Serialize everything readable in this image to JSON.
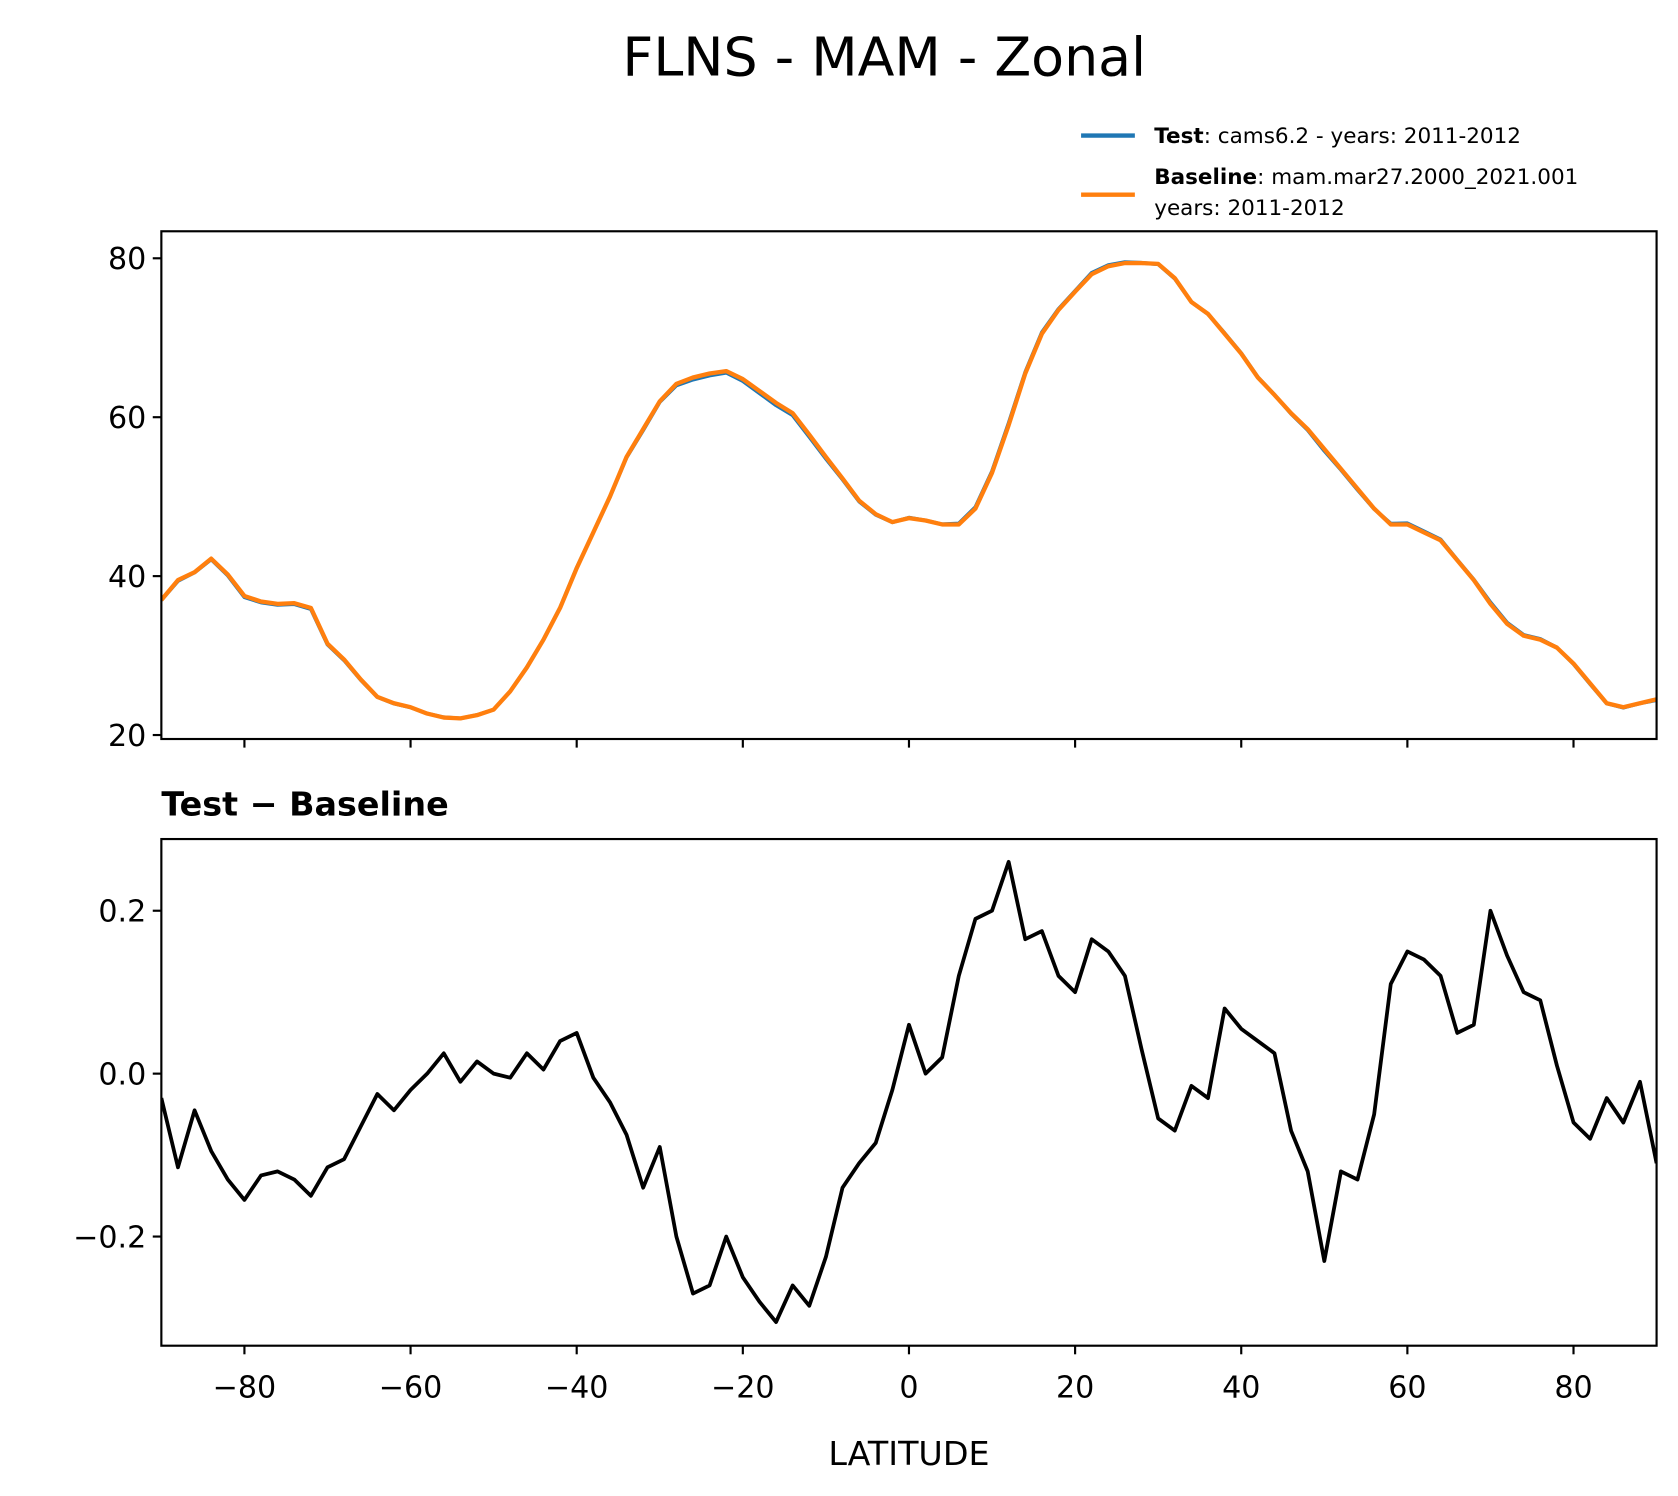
{
  "chart_data": [
    {
      "type": "line",
      "title": "FLNS - MAM - Zonal",
      "x": [
        -90,
        -88,
        -86,
        -84,
        -82,
        -80,
        -78,
        -76,
        -74,
        -72,
        -70,
        -68,
        -66,
        -64,
        -62,
        -60,
        -58,
        -56,
        -54,
        -52,
        -50,
        -48,
        -46,
        -44,
        -42,
        -40,
        -38,
        -36,
        -34,
        -32,
        -30,
        -28,
        -26,
        -24,
        -22,
        -20,
        -18,
        -16,
        -14,
        -12,
        -10,
        -8,
        -6,
        -4,
        -2,
        0,
        2,
        4,
        6,
        8,
        10,
        12,
        14,
        16,
        18,
        20,
        22,
        24,
        26,
        28,
        30,
        32,
        34,
        36,
        38,
        40,
        42,
        44,
        46,
        48,
        50,
        52,
        54,
        56,
        58,
        60,
        62,
        64,
        66,
        68,
        70,
        72,
        74,
        76,
        78,
        80,
        82,
        84,
        86,
        88,
        90
      ],
      "series": [
        {
          "name": "Test",
          "legend_text": [
            ": cams6.2 - years: 2011-2012"
          ],
          "color": "#1f77b4",
          "values": [
            36.97,
            39.39,
            40.46,
            42.11,
            40.07,
            37.35,
            36.68,
            36.38,
            36.47,
            35.85,
            31.39,
            29.4,
            26.94,
            24.78,
            23.96,
            23.48,
            22.7,
            22.23,
            22.09,
            22.52,
            23.2,
            25.5,
            28.53,
            32.01,
            36.04,
            41.05,
            45.5,
            49.97,
            54.93,
            58.36,
            61.91,
            64.0,
            64.73,
            65.24,
            65.6,
            64.55,
            63.02,
            61.5,
            60.24,
            57.52,
            54.78,
            52.16,
            49.39,
            47.72,
            46.78,
            47.36,
            47.0,
            46.52,
            46.62,
            48.69,
            53.2,
            59.26,
            65.67,
            70.68,
            73.62,
            75.9,
            78.17,
            79.15,
            79.52,
            79.43,
            79.25,
            77.43,
            74.49,
            72.97,
            70.58,
            68.06,
            65.04,
            62.83,
            60.43,
            58.38,
            55.77,
            53.38,
            50.87,
            48.45,
            46.61,
            46.65,
            45.64,
            44.62,
            42.05,
            39.56,
            36.7,
            34.15,
            32.6,
            32.09,
            31.01,
            28.94,
            26.42,
            23.97,
            23.44,
            23.99,
            24.39
          ]
        },
        {
          "name": "Baseline",
          "legend_text": [
            ": mam.mar27.2000_2021.001",
            "years: 2011-2012"
          ],
          "color": "#ff7f0e",
          "values": [
            37.0,
            39.5,
            40.5,
            42.2,
            40.2,
            37.5,
            36.8,
            36.5,
            36.6,
            36.0,
            31.5,
            29.5,
            27.0,
            24.8,
            24.0,
            23.5,
            22.7,
            22.2,
            22.1,
            22.5,
            23.2,
            25.5,
            28.5,
            32.0,
            36.0,
            41.0,
            45.5,
            50.0,
            55.0,
            58.5,
            62.0,
            64.2,
            65.0,
            65.5,
            65.8,
            64.8,
            63.3,
            61.8,
            60.5,
            57.8,
            55.0,
            52.3,
            49.5,
            47.8,
            46.8,
            47.3,
            47.0,
            46.5,
            46.5,
            48.5,
            53.0,
            59.0,
            65.5,
            70.5,
            73.5,
            75.8,
            78.0,
            79.0,
            79.4,
            79.4,
            79.3,
            77.5,
            74.5,
            73.0,
            70.5,
            68.0,
            65.0,
            62.8,
            60.5,
            58.5,
            56.0,
            53.5,
            51.0,
            48.5,
            46.5,
            46.5,
            45.5,
            44.5,
            42.0,
            39.5,
            36.5,
            34.0,
            32.5,
            32.0,
            31.0,
            29.0,
            26.5,
            24.0,
            23.5,
            24.0,
            24.5
          ]
        }
      ],
      "xlim": [
        -90,
        90
      ],
      "xticks": [
        -80,
        -60,
        -40,
        -20,
        0,
        20,
        40,
        60,
        80
      ],
      "ylim": [
        19.5,
        83.4
      ],
      "yticks": [
        20,
        40,
        60,
        80
      ]
    },
    {
      "type": "line",
      "title": "Test − Baseline",
      "xlabel": "LATITUDE",
      "color": "#000000",
      "x": [
        -90,
        -88,
        -86,
        -84,
        -82,
        -80,
        -78,
        -76,
        -74,
        -72,
        -70,
        -68,
        -66,
        -64,
        -62,
        -60,
        -58,
        -56,
        -54,
        -52,
        -50,
        -48,
        -46,
        -44,
        -42,
        -40,
        -38,
        -36,
        -34,
        -32,
        -30,
        -28,
        -26,
        -24,
        -22,
        -20,
        -18,
        -16,
        -14,
        -12,
        -10,
        -8,
        -6,
        -4,
        -2,
        0,
        2,
        4,
        6,
        8,
        10,
        12,
        14,
        16,
        18,
        20,
        22,
        24,
        26,
        28,
        30,
        32,
        34,
        36,
        38,
        40,
        42,
        44,
        46,
        48,
        50,
        52,
        54,
        56,
        58,
        60,
        62,
        64,
        66,
        68,
        70,
        72,
        74,
        76,
        78,
        80,
        82,
        84,
        86,
        88,
        90
      ],
      "values": [
        -0.03,
        -0.115,
        -0.045,
        -0.095,
        -0.13,
        -0.155,
        -0.125,
        -0.12,
        -0.13,
        -0.15,
        -0.115,
        -0.105,
        -0.065,
        -0.025,
        -0.045,
        -0.02,
        0.0,
        0.025,
        -0.01,
        0.015,
        0.0,
        -0.005,
        0.025,
        0.005,
        0.04,
        0.05,
        -0.005,
        -0.035,
        -0.075,
        -0.14,
        -0.09,
        -0.2,
        -0.27,
        -0.26,
        -0.2,
        -0.25,
        -0.28,
        -0.305,
        -0.26,
        -0.285,
        -0.225,
        -0.14,
        -0.11,
        -0.085,
        -0.02,
        0.06,
        0.0,
        0.02,
        0.12,
        0.19,
        0.2,
        0.26,
        0.165,
        0.175,
        0.12,
        0.1,
        0.165,
        0.15,
        0.12,
        0.03,
        -0.055,
        -0.07,
        -0.015,
        -0.03,
        0.08,
        0.055,
        0.04,
        0.025,
        -0.07,
        -0.12,
        -0.23,
        -0.12,
        -0.13,
        -0.05,
        0.11,
        0.15,
        0.14,
        0.12,
        0.05,
        0.06,
        0.2,
        0.145,
        0.1,
        0.09,
        0.01,
        -0.06,
        -0.08,
        -0.03,
        -0.06,
        -0.01,
        -0.11
      ],
      "xlim": [
        -90,
        90
      ],
      "xticks": [
        {
          "value": -80,
          "label": "−80"
        },
        {
          "value": -60,
          "label": "−60"
        },
        {
          "value": -40,
          "label": "−40"
        },
        {
          "value": -20,
          "label": "−20"
        },
        0,
        20,
        40,
        60,
        80
      ],
      "ylim": [
        -0.334,
        0.288
      ],
      "yticks": [
        {
          "value": -0.2,
          "label": "−0.2"
        },
        {
          "value": 0,
          "label": "0.0"
        },
        0.2
      ]
    }
  ]
}
